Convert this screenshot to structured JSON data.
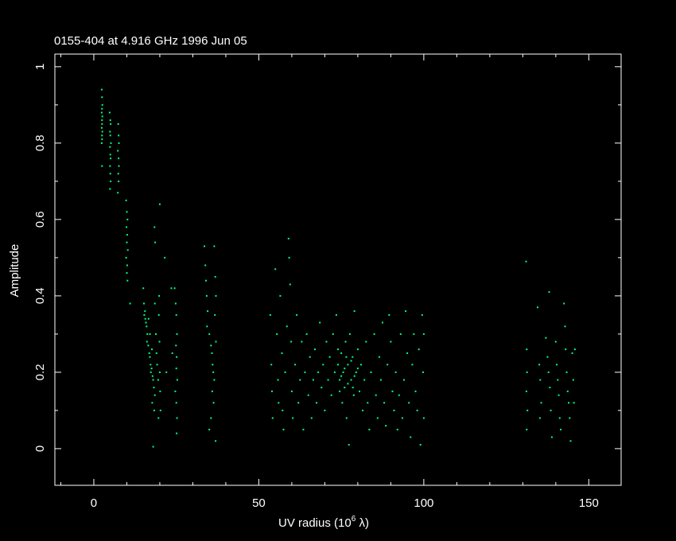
{
  "chart_data": {
    "type": "scatter",
    "title": "0155-404 at 4.916 GHz 1996 Jun 05",
    "xlabel": "UV radius  (10^6 λ)",
    "xlabel_parts": {
      "main": "UV radius  (10",
      "exp": "6",
      "tail": " λ)"
    },
    "ylabel": "Amplitude",
    "xlim": [
      -11.8,
      159.8
    ],
    "ylim": [
      -0.096,
      1.033
    ],
    "x_ticks": [
      0,
      50,
      100,
      150
    ],
    "x_tick_labels": [
      "0",
      "50",
      "100",
      "150"
    ],
    "x_minor_step": 10,
    "y_ticks": [
      0,
      0.2,
      0.4,
      0.6,
      0.8,
      1
    ],
    "y_tick_labels": [
      "0",
      "0.2",
      "0.4",
      "0.6",
      "0.8",
      "1"
    ],
    "y_minor_step": 0.1,
    "grid": false,
    "background_color": "#000000",
    "axis_color": "#ffffff",
    "point_color": "#00ff80",
    "points": [
      [
        2.4,
        0.94
      ],
      [
        2.5,
        0.92
      ],
      [
        2.6,
        0.9
      ],
      [
        2.5,
        0.89
      ],
      [
        2.4,
        0.88
      ],
      [
        2.6,
        0.87
      ],
      [
        2.5,
        0.86
      ],
      [
        2.5,
        0.85
      ],
      [
        2.4,
        0.84
      ],
      [
        2.6,
        0.83
      ],
      [
        2.5,
        0.82
      ],
      [
        2.5,
        0.81
      ],
      [
        2.4,
        0.8
      ],
      [
        2.5,
        0.74
      ],
      [
        4.8,
        0.88
      ],
      [
        5,
        0.86
      ],
      [
        5.1,
        0.85
      ],
      [
        4.9,
        0.83
      ],
      [
        5,
        0.82
      ],
      [
        5.2,
        0.8
      ],
      [
        4.9,
        0.79
      ],
      [
        5,
        0.77
      ],
      [
        5.1,
        0.76
      ],
      [
        4.9,
        0.74
      ],
      [
        5,
        0.72
      ],
      [
        5.1,
        0.7
      ],
      [
        4.9,
        0.68
      ],
      [
        7.4,
        0.85
      ],
      [
        7.5,
        0.82
      ],
      [
        7.6,
        0.8
      ],
      [
        7.3,
        0.78
      ],
      [
        7.5,
        0.76
      ],
      [
        7.6,
        0.74
      ],
      [
        7.4,
        0.72
      ],
      [
        7.5,
        0.7
      ],
      [
        7.3,
        0.67
      ],
      [
        9.8,
        0.65
      ],
      [
        10,
        0.62
      ],
      [
        10.2,
        0.6
      ],
      [
        9.9,
        0.58
      ],
      [
        10.1,
        0.56
      ],
      [
        10,
        0.54
      ],
      [
        10.3,
        0.52
      ],
      [
        9.8,
        0.5
      ],
      [
        10.1,
        0.48
      ],
      [
        10,
        0.46
      ],
      [
        10.2,
        0.44
      ],
      [
        11,
        0.38
      ],
      [
        15,
        0.42
      ],
      [
        15.2,
        0.38
      ],
      [
        15.5,
        0.36
      ],
      [
        15.3,
        0.35
      ],
      [
        15.6,
        0.34
      ],
      [
        15.8,
        0.33
      ],
      [
        16,
        0.32
      ],
      [
        16.2,
        0.3
      ],
      [
        16.1,
        0.28
      ],
      [
        16.5,
        0.27
      ],
      [
        16.8,
        0.25
      ],
      [
        17,
        0.24
      ],
      [
        17.2,
        0.22
      ],
      [
        17.5,
        0.21
      ],
      [
        17.3,
        0.2
      ],
      [
        17.8,
        0.19
      ],
      [
        18,
        0.18
      ],
      [
        18.2,
        0.16
      ],
      [
        17.6,
        0.26
      ],
      [
        17,
        0.3
      ],
      [
        16.6,
        0.34
      ],
      [
        18.5,
        0.38
      ],
      [
        18.4,
        0.58
      ],
      [
        18.6,
        0.54
      ],
      [
        18.5,
        0.14
      ],
      [
        18.3,
        0.1
      ],
      [
        17.7,
        0.12
      ],
      [
        18.8,
        0.3
      ],
      [
        19,
        0.25
      ],
      [
        19.2,
        0.22
      ],
      [
        19.5,
        0.18
      ],
      [
        19.8,
        0.4
      ],
      [
        19.7,
        0.35
      ],
      [
        19.9,
        0.28
      ],
      [
        20,
        0.2
      ],
      [
        20.1,
        0.15
      ],
      [
        20.2,
        0.1
      ],
      [
        19.6,
        0.08
      ],
      [
        20,
        0.64
      ],
      [
        18,
        0.005
      ],
      [
        21.5,
        0.5
      ],
      [
        22,
        0.2
      ],
      [
        24.5,
        0.42
      ],
      [
        24.8,
        0.38
      ],
      [
        25,
        0.35
      ],
      [
        25.2,
        0.3
      ],
      [
        24.9,
        0.27
      ],
      [
        25.1,
        0.24
      ],
      [
        25,
        0.21
      ],
      [
        25.3,
        0.18
      ],
      [
        24.7,
        0.15
      ],
      [
        25,
        0.12
      ],
      [
        25.2,
        0.08
      ],
      [
        25.1,
        0.04
      ],
      [
        23.5,
        0.42
      ],
      [
        23.8,
        0.25
      ],
      [
        33.5,
        0.53
      ],
      [
        33.8,
        0.48
      ],
      [
        34,
        0.44
      ],
      [
        34.2,
        0.4
      ],
      [
        34.5,
        0.36
      ],
      [
        34.3,
        0.32
      ],
      [
        35,
        0.3
      ],
      [
        35.5,
        0.27
      ],
      [
        35.8,
        0.25
      ],
      [
        36,
        0.22
      ],
      [
        36.2,
        0.2
      ],
      [
        36.5,
        0.18
      ],
      [
        35.9,
        0.15
      ],
      [
        36.3,
        0.12
      ],
      [
        35.5,
        0.08
      ],
      [
        35,
        0.05
      ],
      [
        36.5,
        0.53
      ],
      [
        36.8,
        0.45
      ],
      [
        37,
        0.4
      ],
      [
        36.7,
        0.35
      ],
      [
        37,
        0.28
      ],
      [
        36.9,
        0.02
      ],
      [
        53.5,
        0.35
      ],
      [
        53.8,
        0.22
      ],
      [
        54,
        0.15
      ],
      [
        54.2,
        0.08
      ],
      [
        55,
        0.47
      ],
      [
        55.5,
        0.3
      ],
      [
        55.8,
        0.18
      ],
      [
        56,
        0.12
      ],
      [
        56.5,
        0.4
      ],
      [
        57,
        0.25
      ],
      [
        57.2,
        0.1
      ],
      [
        57.5,
        0.05
      ],
      [
        58,
        0.2
      ],
      [
        58.5,
        0.32
      ],
      [
        59,
        0.55
      ],
      [
        59.2,
        0.5
      ],
      [
        59.5,
        0.43
      ],
      [
        59.8,
        0.28
      ],
      [
        60,
        0.15
      ],
      [
        60.3,
        0.08
      ],
      [
        61,
        0.22
      ],
      [
        61.5,
        0.35
      ],
      [
        62,
        0.12
      ],
      [
        62.5,
        0.18
      ],
      [
        63,
        0.28
      ],
      [
        63.5,
        0.05
      ],
      [
        64,
        0.2
      ],
      [
        64.5,
        0.3
      ],
      [
        65,
        0.14
      ],
      [
        65.5,
        0.24
      ],
      [
        66,
        0.08
      ],
      [
        66.5,
        0.18
      ],
      [
        67,
        0.26
      ],
      [
        67.5,
        0.12
      ],
      [
        68,
        0.2
      ],
      [
        68.5,
        0.33
      ],
      [
        69,
        0.16
      ],
      [
        69.5,
        0.22
      ],
      [
        70,
        0.1
      ],
      [
        70.5,
        0.28
      ],
      [
        71,
        0.18
      ],
      [
        71.5,
        0.24
      ],
      [
        72,
        0.14
      ],
      [
        72.5,
        0.3
      ],
      [
        73,
        0.2
      ],
      [
        73.5,
        0.35
      ],
      [
        74,
        0.22
      ],
      [
        74.5,
        0.18
      ],
      [
        75,
        0.25
      ],
      [
        75.3,
        0.12
      ],
      [
        75.6,
        0.2
      ],
      [
        76,
        0.16
      ],
      [
        76.3,
        0.28
      ],
      [
        76.6,
        0.08
      ],
      [
        77,
        0.22
      ],
      [
        77.3,
        0.01
      ],
      [
        77.6,
        0.3
      ],
      [
        78,
        0.18
      ],
      [
        78.4,
        0.24
      ],
      [
        78.8,
        0.14
      ],
      [
        79,
        0.36
      ],
      [
        79.5,
        0.2
      ],
      [
        80,
        0.26
      ],
      [
        80.5,
        0.15
      ],
      [
        81,
        0.22
      ],
      [
        81.5,
        0.1
      ],
      [
        82,
        0.18
      ],
      [
        82.5,
        0.28
      ],
      [
        83,
        0.12
      ],
      [
        83.5,
        0.05
      ],
      [
        84,
        0.2
      ],
      [
        85,
        0.3
      ],
      [
        85.5,
        0.14
      ],
      [
        86,
        0.08
      ],
      [
        86.5,
        0.24
      ],
      [
        87,
        0.18
      ],
      [
        87.5,
        0.33
      ],
      [
        88,
        0.12
      ],
      [
        88.5,
        0.06
      ],
      [
        89,
        0.22
      ],
      [
        89.5,
        0.35
      ],
      [
        90,
        0.28
      ],
      [
        90.5,
        0.15
      ],
      [
        91,
        0.1
      ],
      [
        91.5,
        0.2
      ],
      [
        92,
        0.05
      ],
      [
        92.5,
        0.14
      ],
      [
        93,
        0.3
      ],
      [
        93.5,
        0.08
      ],
      [
        94,
        0.18
      ],
      [
        94.5,
        0.36
      ],
      [
        95,
        0.25
      ],
      [
        95.5,
        0.12
      ],
      [
        96,
        0.03
      ],
      [
        96.5,
        0.22
      ],
      [
        97,
        0.3
      ],
      [
        97.5,
        0.15
      ],
      [
        98,
        0.1
      ],
      [
        98.5,
        0.26
      ],
      [
        99,
        0.01
      ],
      [
        99.5,
        0.35
      ],
      [
        99.8,
        0.2
      ],
      [
        100,
        0.08
      ],
      [
        100,
        0.3
      ],
      [
        74,
        0.26
      ],
      [
        75,
        0.19
      ],
      [
        76,
        0.21
      ],
      [
        77,
        0.17
      ],
      [
        78,
        0.23
      ],
      [
        79,
        0.19
      ],
      [
        80,
        0.21
      ],
      [
        74.5,
        0.15
      ],
      [
        76.5,
        0.24
      ],
      [
        78.5,
        0.16
      ],
      [
        131,
        0.49
      ],
      [
        131.2,
        0.26
      ],
      [
        131.3,
        0.2
      ],
      [
        131.1,
        0.15
      ],
      [
        131.4,
        0.1
      ],
      [
        131.2,
        0.05
      ],
      [
        134.5,
        0.37
      ],
      [
        135,
        0.22
      ],
      [
        135.3,
        0.18
      ],
      [
        135.6,
        0.12
      ],
      [
        135.2,
        0.08
      ],
      [
        137,
        0.29
      ],
      [
        137.5,
        0.24
      ],
      [
        137.8,
        0.2
      ],
      [
        138,
        0.41
      ],
      [
        138.2,
        0.16
      ],
      [
        138.5,
        0.1
      ],
      [
        138.8,
        0.03
      ],
      [
        140,
        0.28
      ],
      [
        140.3,
        0.22
      ],
      [
        140.6,
        0.18
      ],
      [
        140.9,
        0.14
      ],
      [
        141.2,
        0.08
      ],
      [
        141.5,
        0.05
      ],
      [
        142.5,
        0.38
      ],
      [
        142.8,
        0.32
      ],
      [
        143,
        0.26
      ],
      [
        143.3,
        0.2
      ],
      [
        143.6,
        0.15
      ],
      [
        143.9,
        0.12
      ],
      [
        144.2,
        0.08
      ],
      [
        144.5,
        0.02
      ],
      [
        145,
        0.25
      ],
      [
        145.3,
        0.18
      ],
      [
        145.5,
        0.12
      ],
      [
        145.8,
        0.26
      ]
    ]
  }
}
